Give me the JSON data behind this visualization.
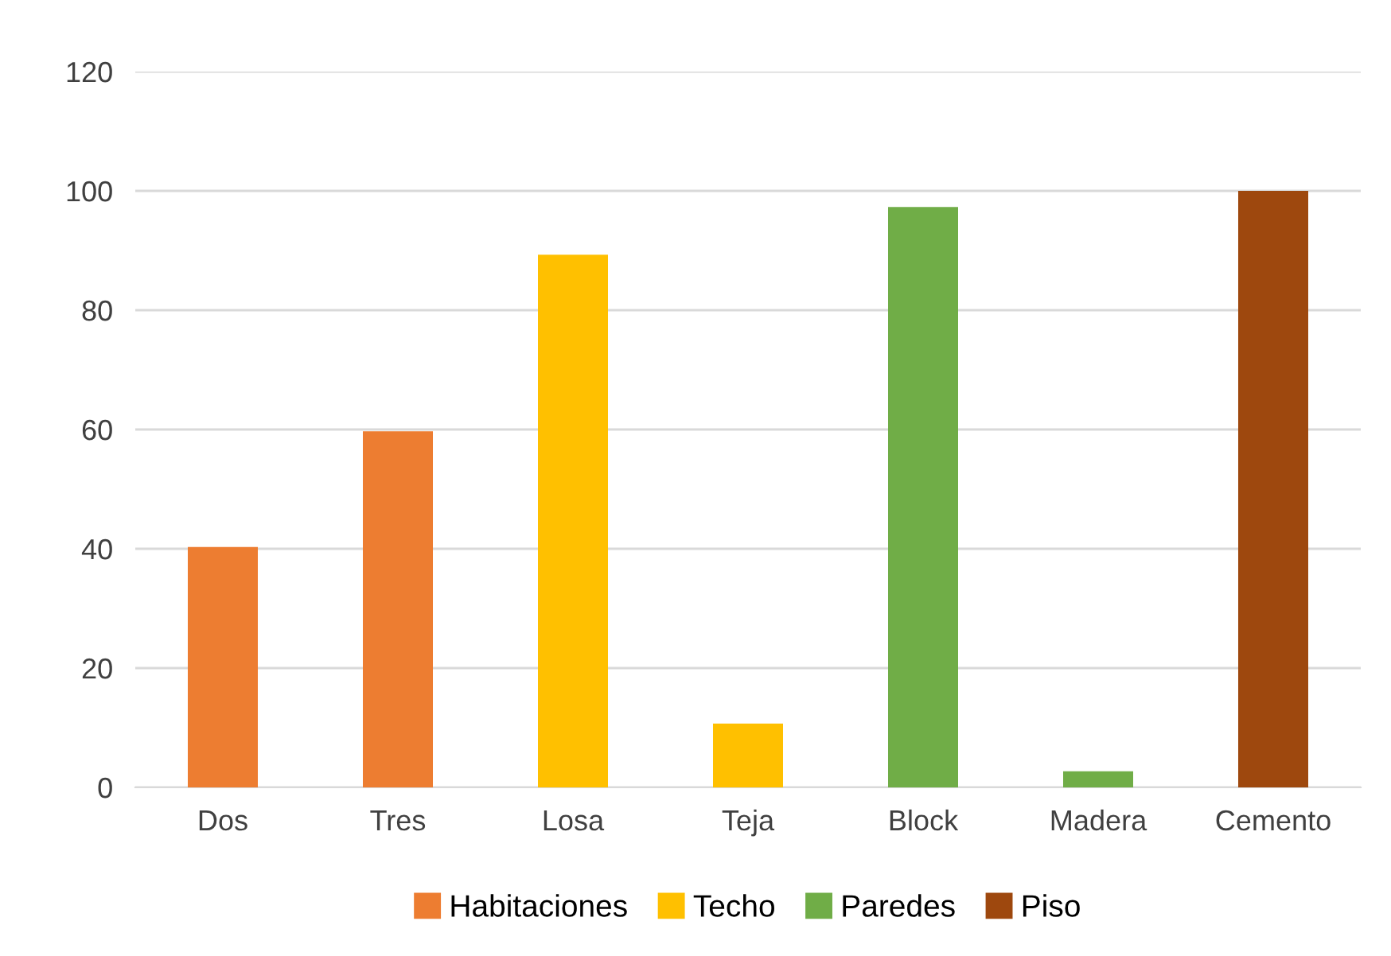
{
  "chart_data": {
    "type": "bar",
    "stacked": true,
    "categories": [
      "Dos",
      "Tres",
      "Losa",
      "Teja",
      "Block",
      "Madera",
      "Cemento"
    ],
    "series": [
      {
        "name": "Habitaciones",
        "color": "#ed7d31",
        "values": [
          40.3,
          59.7,
          null,
          null,
          null,
          null,
          null
        ]
      },
      {
        "name": "Techo",
        "color": "#ffc000",
        "values": [
          null,
          null,
          89.3,
          10.7,
          null,
          null,
          null
        ]
      },
      {
        "name": "Paredes",
        "color": "#70ad47",
        "values": [
          null,
          null,
          null,
          null,
          97.3,
          2.7,
          null
        ]
      },
      {
        "name": "Piso",
        "color": "#9e480e",
        "values": [
          null,
          null,
          null,
          null,
          null,
          null,
          100
        ]
      }
    ],
    "ylim": [
      0,
      120
    ],
    "yticks": [
      0,
      20,
      40,
      60,
      80,
      100,
      120
    ],
    "grid": "y",
    "legend": "bottom"
  }
}
